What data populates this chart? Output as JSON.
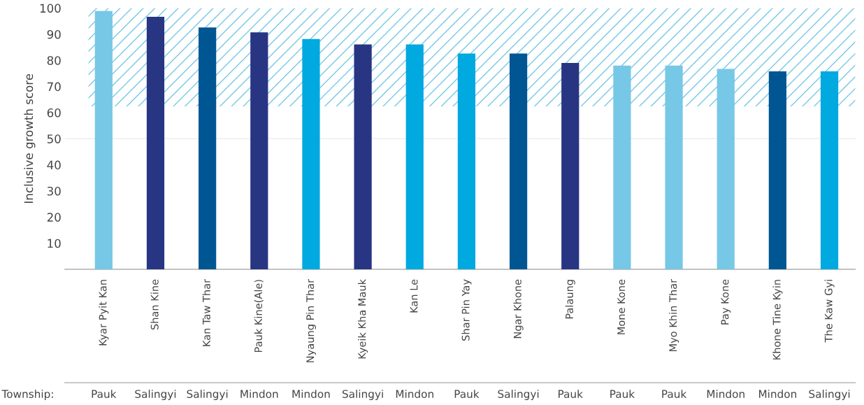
{
  "chart_data": {
    "type": "bar",
    "ylabel": "Inclusive growth score",
    "categories": [
      "Kyar Pyit Kan",
      "Shan Kine",
      "Kan Taw Thar",
      "Pauk Kine(Ale)",
      "Nyaung Pin Thar",
      "Kyeik Kha Mauk",
      "Kan Le",
      "Shar Pin Yay",
      "Ngar Khone",
      "Palaung",
      "Mone Kone",
      "Myo Khin Thar",
      "Pay Kone",
      "Khone Tine Kyin",
      "The Kaw Gyi"
    ],
    "values": [
      98.9,
      96.7,
      92.6,
      90.7,
      88.2,
      86.1,
      86.1,
      82.6,
      82.6,
      79.0,
      78.0,
      78.0,
      76.7,
      75.8,
      75.8
    ],
    "colors": [
      "#76c8e6",
      "#283583",
      "#005693",
      "#283583",
      "#00a9e0",
      "#283583",
      "#00a9e0",
      "#00a9e0",
      "#005693",
      "#283583",
      "#76c8e6",
      "#76c8e6",
      "#76c8e6",
      "#005693",
      "#00a9e0"
    ],
    "ylim": [
      0,
      100
    ],
    "yticks": [
      10,
      20,
      30,
      40,
      50,
      60,
      70,
      80,
      90,
      100
    ],
    "grid": false,
    "bands": [
      {
        "axis": "y",
        "from": 62.4,
        "to": 100,
        "color": "#76c8e6"
      }
    ],
    "ref_lines": [
      {
        "axis": "y",
        "value": 50,
        "color": "#eeeeee"
      }
    ],
    "annotations": [
      "Township:",
      "Pauk",
      "Salingyi",
      "Salingyi",
      "Mindon",
      "Mindon",
      "Salingyi",
      "Mindon",
      "Pauk",
      "Salingyi",
      "Pauk",
      "Pauk",
      "Pauk",
      "Mindon",
      "Mindon",
      "Salingyi"
    ]
  }
}
